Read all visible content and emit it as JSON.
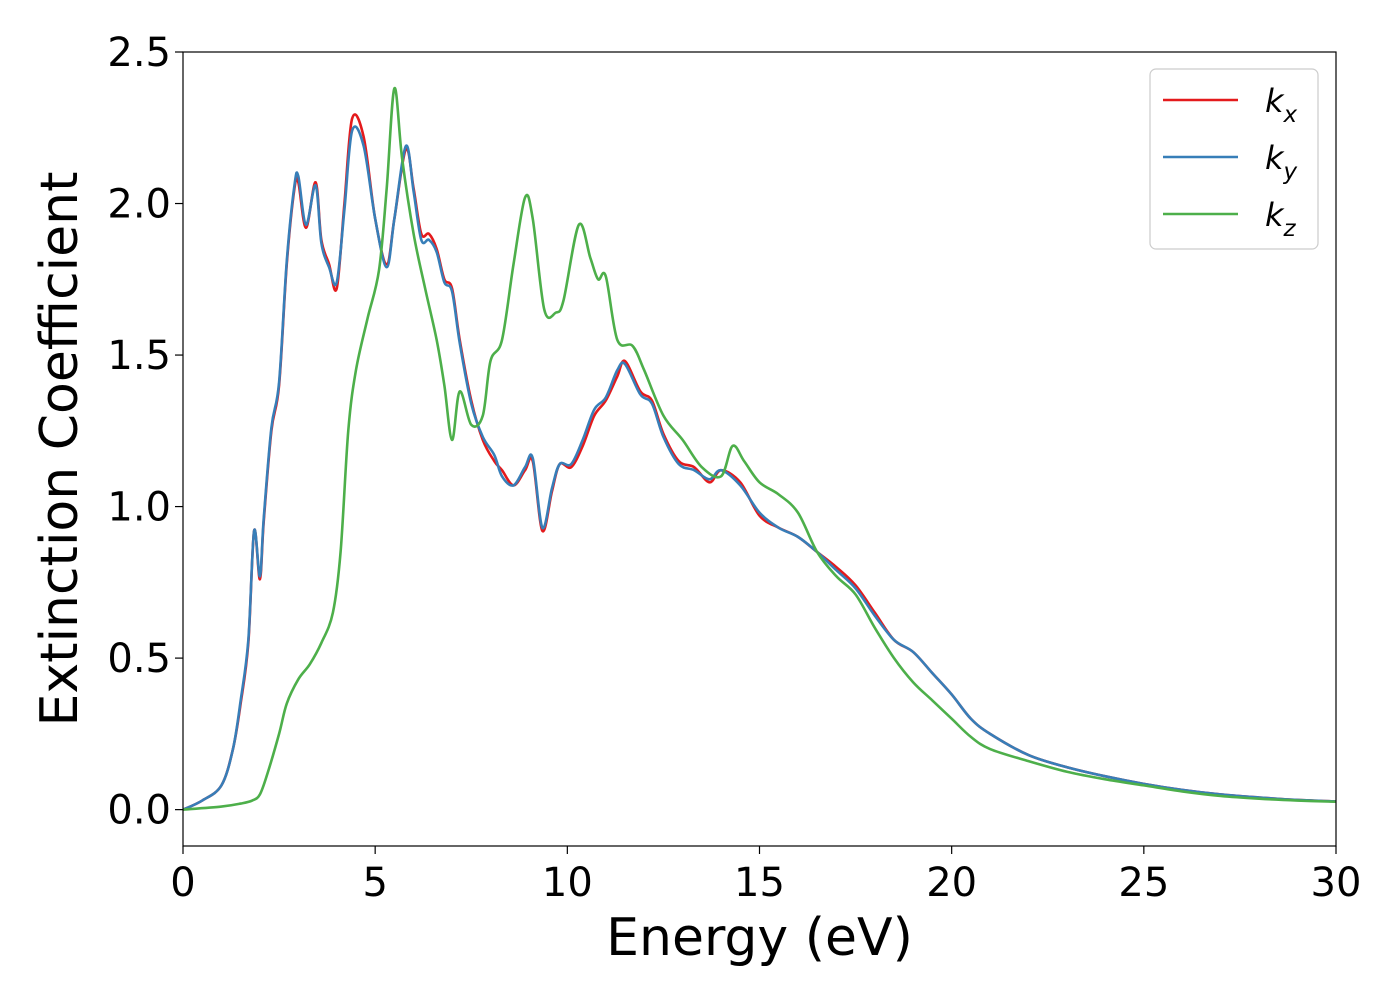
{
  "chart_data": {
    "type": "line",
    "xlabel": "Energy (eV)",
    "ylabel": "Extinction Coefficient",
    "xlim": [
      0,
      30
    ],
    "ylim": [
      -0.12,
      2.5
    ],
    "xticks": [
      0,
      5,
      10,
      15,
      20,
      25,
      30
    ],
    "xtick_labels": [
      "0",
      "5",
      "10",
      "15",
      "20",
      "25",
      "30"
    ],
    "yticks": [
      0.0,
      0.5,
      1.0,
      1.5,
      2.0,
      2.5
    ],
    "ytick_labels": [
      "0.0",
      "0.5",
      "1.0",
      "1.5",
      "2.0",
      "2.5"
    ],
    "grid": false,
    "legend_position": "top-right",
    "series": [
      {
        "name": "k_x",
        "label_main": "k",
        "label_sub": "x",
        "color": "#e41a1c",
        "x": [
          0,
          0.5,
          1.0,
          1.3,
          1.5,
          1.7,
          1.85,
          2.0,
          2.1,
          2.3,
          2.5,
          2.7,
          2.9,
          3.0,
          3.2,
          3.45,
          3.6,
          3.8,
          4.0,
          4.2,
          4.4,
          4.7,
          5.0,
          5.3,
          5.5,
          5.8,
          6.0,
          6.2,
          6.4,
          6.6,
          6.8,
          7.0,
          7.2,
          7.5,
          7.8,
          8.1,
          8.3,
          8.6,
          8.9,
          9.1,
          9.35,
          9.6,
          9.8,
          10.1,
          10.4,
          10.7,
          11.0,
          11.3,
          11.5,
          11.9,
          12.2,
          12.5,
          12.9,
          13.3,
          13.7,
          14.0,
          14.5,
          15.0,
          15.5,
          16.0,
          16.5,
          17.0,
          17.5,
          18.0,
          18.5,
          19.0,
          19.5,
          20.0,
          20.5,
          21.0,
          22.0,
          23.0,
          24.0,
          25.0,
          26.0,
          27.0,
          28.0,
          29.0,
          30.0
        ],
        "values": [
          0.0,
          0.03,
          0.08,
          0.2,
          0.35,
          0.55,
          0.92,
          0.76,
          0.95,
          1.25,
          1.4,
          1.8,
          2.05,
          2.07,
          1.92,
          2.07,
          1.88,
          1.8,
          1.72,
          2.0,
          2.28,
          2.22,
          1.95,
          1.8,
          1.95,
          2.18,
          2.05,
          1.9,
          1.9,
          1.85,
          1.75,
          1.72,
          1.55,
          1.35,
          1.22,
          1.15,
          1.12,
          1.07,
          1.12,
          1.15,
          0.92,
          1.05,
          1.14,
          1.13,
          1.2,
          1.3,
          1.35,
          1.43,
          1.48,
          1.38,
          1.35,
          1.24,
          1.15,
          1.13,
          1.08,
          1.12,
          1.08,
          0.97,
          0.93,
          0.9,
          0.85,
          0.8,
          0.74,
          0.65,
          0.56,
          0.52,
          0.45,
          0.38,
          0.3,
          0.25,
          0.18,
          0.14,
          0.11,
          0.085,
          0.065,
          0.05,
          0.04,
          0.032,
          0.027
        ]
      },
      {
        "name": "k_y",
        "label_main": "k",
        "label_sub": "y",
        "color": "#377eb8",
        "x": [
          0,
          0.5,
          1.0,
          1.3,
          1.5,
          1.7,
          1.85,
          2.0,
          2.1,
          2.3,
          2.5,
          2.7,
          2.9,
          3.0,
          3.2,
          3.45,
          3.6,
          3.8,
          4.0,
          4.2,
          4.4,
          4.7,
          5.0,
          5.3,
          5.5,
          5.8,
          6.0,
          6.2,
          6.4,
          6.6,
          6.8,
          7.0,
          7.2,
          7.5,
          7.8,
          8.1,
          8.3,
          8.6,
          8.9,
          9.1,
          9.35,
          9.6,
          9.8,
          10.1,
          10.4,
          10.7,
          11.0,
          11.3,
          11.5,
          11.9,
          12.2,
          12.5,
          12.9,
          13.3,
          13.7,
          14.0,
          14.5,
          15.0,
          15.5,
          16.0,
          16.5,
          17.0,
          17.5,
          18.0,
          18.5,
          19.0,
          19.5,
          20.0,
          20.5,
          21.0,
          22.0,
          23.0,
          24.0,
          25.0,
          26.0,
          27.0,
          28.0,
          29.0,
          30.0
        ],
        "values": [
          0.0,
          0.03,
          0.08,
          0.2,
          0.36,
          0.56,
          0.92,
          0.77,
          0.96,
          1.26,
          1.41,
          1.81,
          2.06,
          2.09,
          1.93,
          2.06,
          1.87,
          1.79,
          1.74,
          1.98,
          2.24,
          2.19,
          1.95,
          1.79,
          1.95,
          2.19,
          2.04,
          1.88,
          1.88,
          1.84,
          1.74,
          1.71,
          1.54,
          1.34,
          1.23,
          1.17,
          1.1,
          1.07,
          1.13,
          1.16,
          0.93,
          1.06,
          1.14,
          1.14,
          1.22,
          1.32,
          1.36,
          1.45,
          1.47,
          1.37,
          1.34,
          1.23,
          1.14,
          1.12,
          1.09,
          1.12,
          1.07,
          0.98,
          0.93,
          0.9,
          0.85,
          0.79,
          0.73,
          0.64,
          0.56,
          0.52,
          0.45,
          0.38,
          0.3,
          0.25,
          0.18,
          0.14,
          0.11,
          0.085,
          0.065,
          0.05,
          0.04,
          0.032,
          0.027
        ]
      },
      {
        "name": "k_z",
        "label_main": "k",
        "label_sub": "z",
        "color": "#4daf4a",
        "x": [
          0,
          1.0,
          1.5,
          1.8,
          2.0,
          2.2,
          2.5,
          2.7,
          3.0,
          3.3,
          3.6,
          3.9,
          4.1,
          4.3,
          4.5,
          4.8,
          5.1,
          5.3,
          5.5,
          5.7,
          6.0,
          6.3,
          6.6,
          6.8,
          7.0,
          7.2,
          7.5,
          7.8,
          8.0,
          8.3,
          8.6,
          8.9,
          9.1,
          9.4,
          9.7,
          9.9,
          10.3,
          10.6,
          10.8,
          11.0,
          11.3,
          11.7,
          12.0,
          12.5,
          13.0,
          13.5,
          14.0,
          14.3,
          14.6,
          15.0,
          15.5,
          16.0,
          16.5,
          17.0,
          17.5,
          18.0,
          18.5,
          19.0,
          19.5,
          20.0,
          20.5,
          21.0,
          22.0,
          23.0,
          24.0,
          25.0,
          26.0,
          27.0,
          28.0,
          29.0,
          30.0
        ],
        "values": [
          0.0,
          0.01,
          0.02,
          0.03,
          0.05,
          0.12,
          0.25,
          0.35,
          0.43,
          0.48,
          0.55,
          0.65,
          0.85,
          1.25,
          1.45,
          1.62,
          1.78,
          2.05,
          2.38,
          2.15,
          1.9,
          1.72,
          1.55,
          1.4,
          1.22,
          1.38,
          1.27,
          1.3,
          1.48,
          1.55,
          1.8,
          2.02,
          1.95,
          1.65,
          1.64,
          1.68,
          1.93,
          1.82,
          1.75,
          1.76,
          1.55,
          1.53,
          1.45,
          1.3,
          1.22,
          1.13,
          1.1,
          1.2,
          1.15,
          1.08,
          1.04,
          0.98,
          0.85,
          0.77,
          0.71,
          0.6,
          0.5,
          0.42,
          0.36,
          0.3,
          0.24,
          0.2,
          0.16,
          0.125,
          0.1,
          0.08,
          0.06,
          0.045,
          0.036,
          0.03,
          0.026
        ]
      }
    ]
  }
}
